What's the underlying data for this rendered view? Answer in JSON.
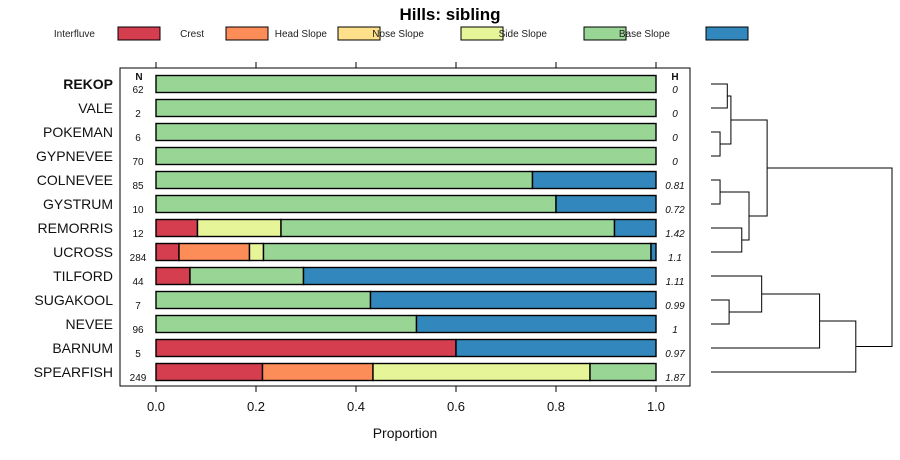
{
  "chart_data": {
    "type": "bar",
    "orientation": "horizontal-stacked",
    "title": "Hills: sibling",
    "xlabel": "Proportion",
    "ylabel": "",
    "xlim": [
      0,
      1
    ],
    "x_ticks": [
      "0.0",
      "0.2",
      "0.4",
      "0.6",
      "0.8",
      "1.0"
    ],
    "n_header": "N",
    "h_header": "H",
    "legend_position": "top",
    "classes": [
      {
        "name": "Interfluve",
        "color": "#d53e4f"
      },
      {
        "name": "Crest",
        "color": "#fc8d59"
      },
      {
        "name": "Head Slope",
        "color": "#fee08b"
      },
      {
        "name": "Nose Slope",
        "color": "#e6f598"
      },
      {
        "name": "Side Slope",
        "color": "#99d594"
      },
      {
        "name": "Base Slope",
        "color": "#3288bd"
      }
    ],
    "series_rows": [
      {
        "site": "REKOP",
        "bold": true,
        "n": "62",
        "h": "0",
        "values": [
          0,
          0,
          0,
          0,
          1.0,
          0
        ]
      },
      {
        "site": "VALE",
        "bold": false,
        "n": "2",
        "h": "0",
        "values": [
          0,
          0,
          0,
          0,
          1.0,
          0
        ]
      },
      {
        "site": "POKEMAN",
        "bold": false,
        "n": "6",
        "h": "0",
        "values": [
          0,
          0,
          0,
          0,
          1.0,
          0
        ]
      },
      {
        "site": "GYPNEVEE",
        "bold": false,
        "n": "70",
        "h": "0",
        "values": [
          0,
          0,
          0,
          0,
          1.0,
          0
        ]
      },
      {
        "site": "COLNEVEE",
        "bold": false,
        "n": "85",
        "h": "0.81",
        "values": [
          0,
          0,
          0,
          0,
          0.753,
          0.247
        ]
      },
      {
        "site": "GYSTRUM",
        "bold": false,
        "n": "10",
        "h": "0.72",
        "values": [
          0,
          0,
          0,
          0,
          0.8,
          0.2
        ]
      },
      {
        "site": "REMORRIS",
        "bold": false,
        "n": "12",
        "h": "1.42",
        "values": [
          0.083,
          0,
          0,
          0.167,
          0.667,
          0.083
        ]
      },
      {
        "site": "UCROSS",
        "bold": false,
        "n": "284",
        "h": "1.1",
        "values": [
          0.046,
          0.141,
          0,
          0.028,
          0.775,
          0.01
        ]
      },
      {
        "site": "TILFORD",
        "bold": false,
        "n": "44",
        "h": "1.11",
        "values": [
          0.068,
          0,
          0,
          0,
          0.227,
          0.705
        ]
      },
      {
        "site": "SUGAKOOL",
        "bold": false,
        "n": "7",
        "h": "0.99",
        "values": [
          0,
          0,
          0,
          0,
          0.429,
          0.571
        ]
      },
      {
        "site": "NEVEE",
        "bold": false,
        "n": "96",
        "h": "1",
        "values": [
          0,
          0,
          0,
          0,
          0.521,
          0.479
        ]
      },
      {
        "site": "BARNUM",
        "bold": false,
        "n": "5",
        "h": "0.97",
        "values": [
          0.6,
          0,
          0,
          0,
          0,
          0.4
        ]
      },
      {
        "site": "SPEARFISH",
        "bold": false,
        "n": "249",
        "h": "1.87",
        "values": [
          0.213,
          0.221,
          0,
          0.434,
          0.132,
          0
        ]
      }
    ],
    "dendrogram": {
      "type": "hierarchical-clustering",
      "merges": [
        {
          "id": "c1",
          "left": "leaf:0",
          "right": "leaf:1",
          "height": 0.09
        },
        {
          "id": "c2",
          "left": "leaf:2",
          "right": "leaf:3",
          "height": 0.05
        },
        {
          "id": "c3",
          "left": "c1",
          "right": "c2",
          "height": 0.11
        },
        {
          "id": "c4",
          "left": "leaf:4",
          "right": "leaf:5",
          "height": 0.05
        },
        {
          "id": "c5",
          "left": "leaf:6",
          "right": "leaf:7",
          "height": 0.17
        },
        {
          "id": "c6",
          "left": "c4",
          "right": "c5",
          "height": 0.21
        },
        {
          "id": "c7",
          "left": "c3",
          "right": "c6",
          "height": 0.31
        },
        {
          "id": "c8",
          "left": "leaf:9",
          "right": "leaf:10",
          "height": 0.1
        },
        {
          "id": "c9",
          "left": "leaf:8",
          "right": "c8",
          "height": 0.28
        },
        {
          "id": "c10",
          "left": "c9",
          "right": "leaf:11",
          "height": 0.6
        },
        {
          "id": "c11",
          "left": "c10",
          "right": "leaf:12",
          "height": 0.8
        },
        {
          "id": "c12",
          "left": "c7",
          "right": "c11",
          "height": 1.0
        }
      ]
    }
  }
}
